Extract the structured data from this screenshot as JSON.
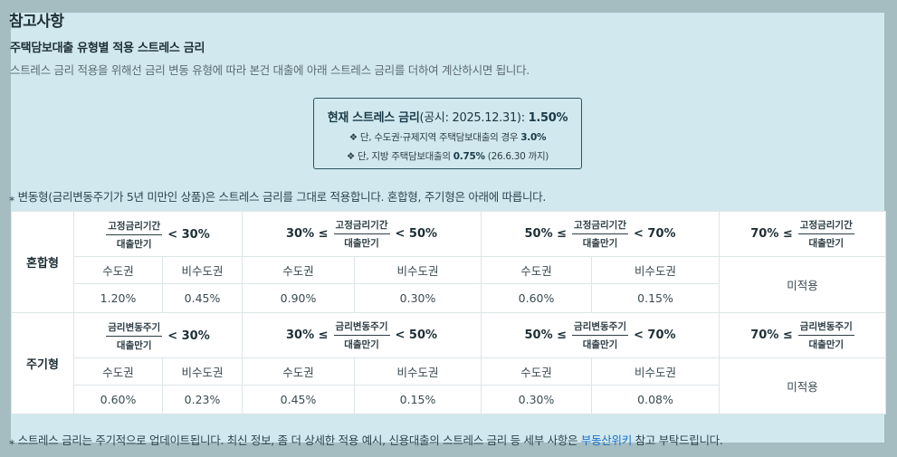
{
  "title": "참고사항",
  "subtitle": "주택담보대출 유형별 적용 스트레스 금리",
  "description": "스트레스 금리 적용을 위해선 금리 변동 유형에 따라 본건 대출에 아래 스트레스 금리를 더하여 계산하시면 됩니다.",
  "current": {
    "label": "현재 스트레스 금리",
    "notice": "(공시: 2025.12.31): ",
    "rate": "1.50%",
    "note1_prefix": "❖ 단, 수도권·규제지역 주택담보대출의 경우 ",
    "note1_rate": "3.0%",
    "note2_prefix": "❖ 단, 지방 주택담보대출의 ",
    "note2_rate": "0.75%",
    "note2_suffix": " (26.6.30 까지)"
  },
  "note_variable": "⁎ 변동형(금리변동주기가 5년 미만인 상품)은 스트레스 금리를 그대로 적용합니다. 혼합형, 주기형은 아래에 따릅니다.",
  "footer": {
    "prefix": "⁎ 스트레스 금리는 주기적으로 업데이트됩니다. 최신 정보, 좀 더 상세한 적용 예시, 신용대출의 스트레스 금리 등 세부 사항은 ",
    "link": "부동산위키",
    "suffix": " 참고 부탁드립니다."
  },
  "table": {
    "mixed": {
      "label": "혼합형",
      "numerator": "고정금리기간",
      "denominator": "대출만기",
      "ranges": [
        {
          "left": "",
          "right": "< 30%"
        },
        {
          "left": "30% ≤",
          "right": "< 50%"
        },
        {
          "left": "50% ≤",
          "right": "< 70%"
        },
        {
          "left": "70% ≤",
          "right": ""
        }
      ],
      "metro": "수도권",
      "nonmetro": "비수도권",
      "values": [
        "1.20%",
        "0.45%",
        "0.90%",
        "0.30%",
        "0.60%",
        "0.15%"
      ],
      "na": "미적용"
    },
    "periodic": {
      "label": "주기형",
      "numerator": "금리변동주기",
      "denominator": "대출만기",
      "ranges": [
        {
          "left": "",
          "right": "< 30%"
        },
        {
          "left": "30% ≤",
          "right": "< 50%"
        },
        {
          "left": "50% ≤",
          "right": "< 70%"
        },
        {
          "left": "70% ≤",
          "right": ""
        }
      ],
      "metro": "수도권",
      "nonmetro": "비수도권",
      "values": [
        "0.60%",
        "0.23%",
        "0.45%",
        "0.15%",
        "0.30%",
        "0.08%"
      ],
      "na": "미적용"
    }
  }
}
